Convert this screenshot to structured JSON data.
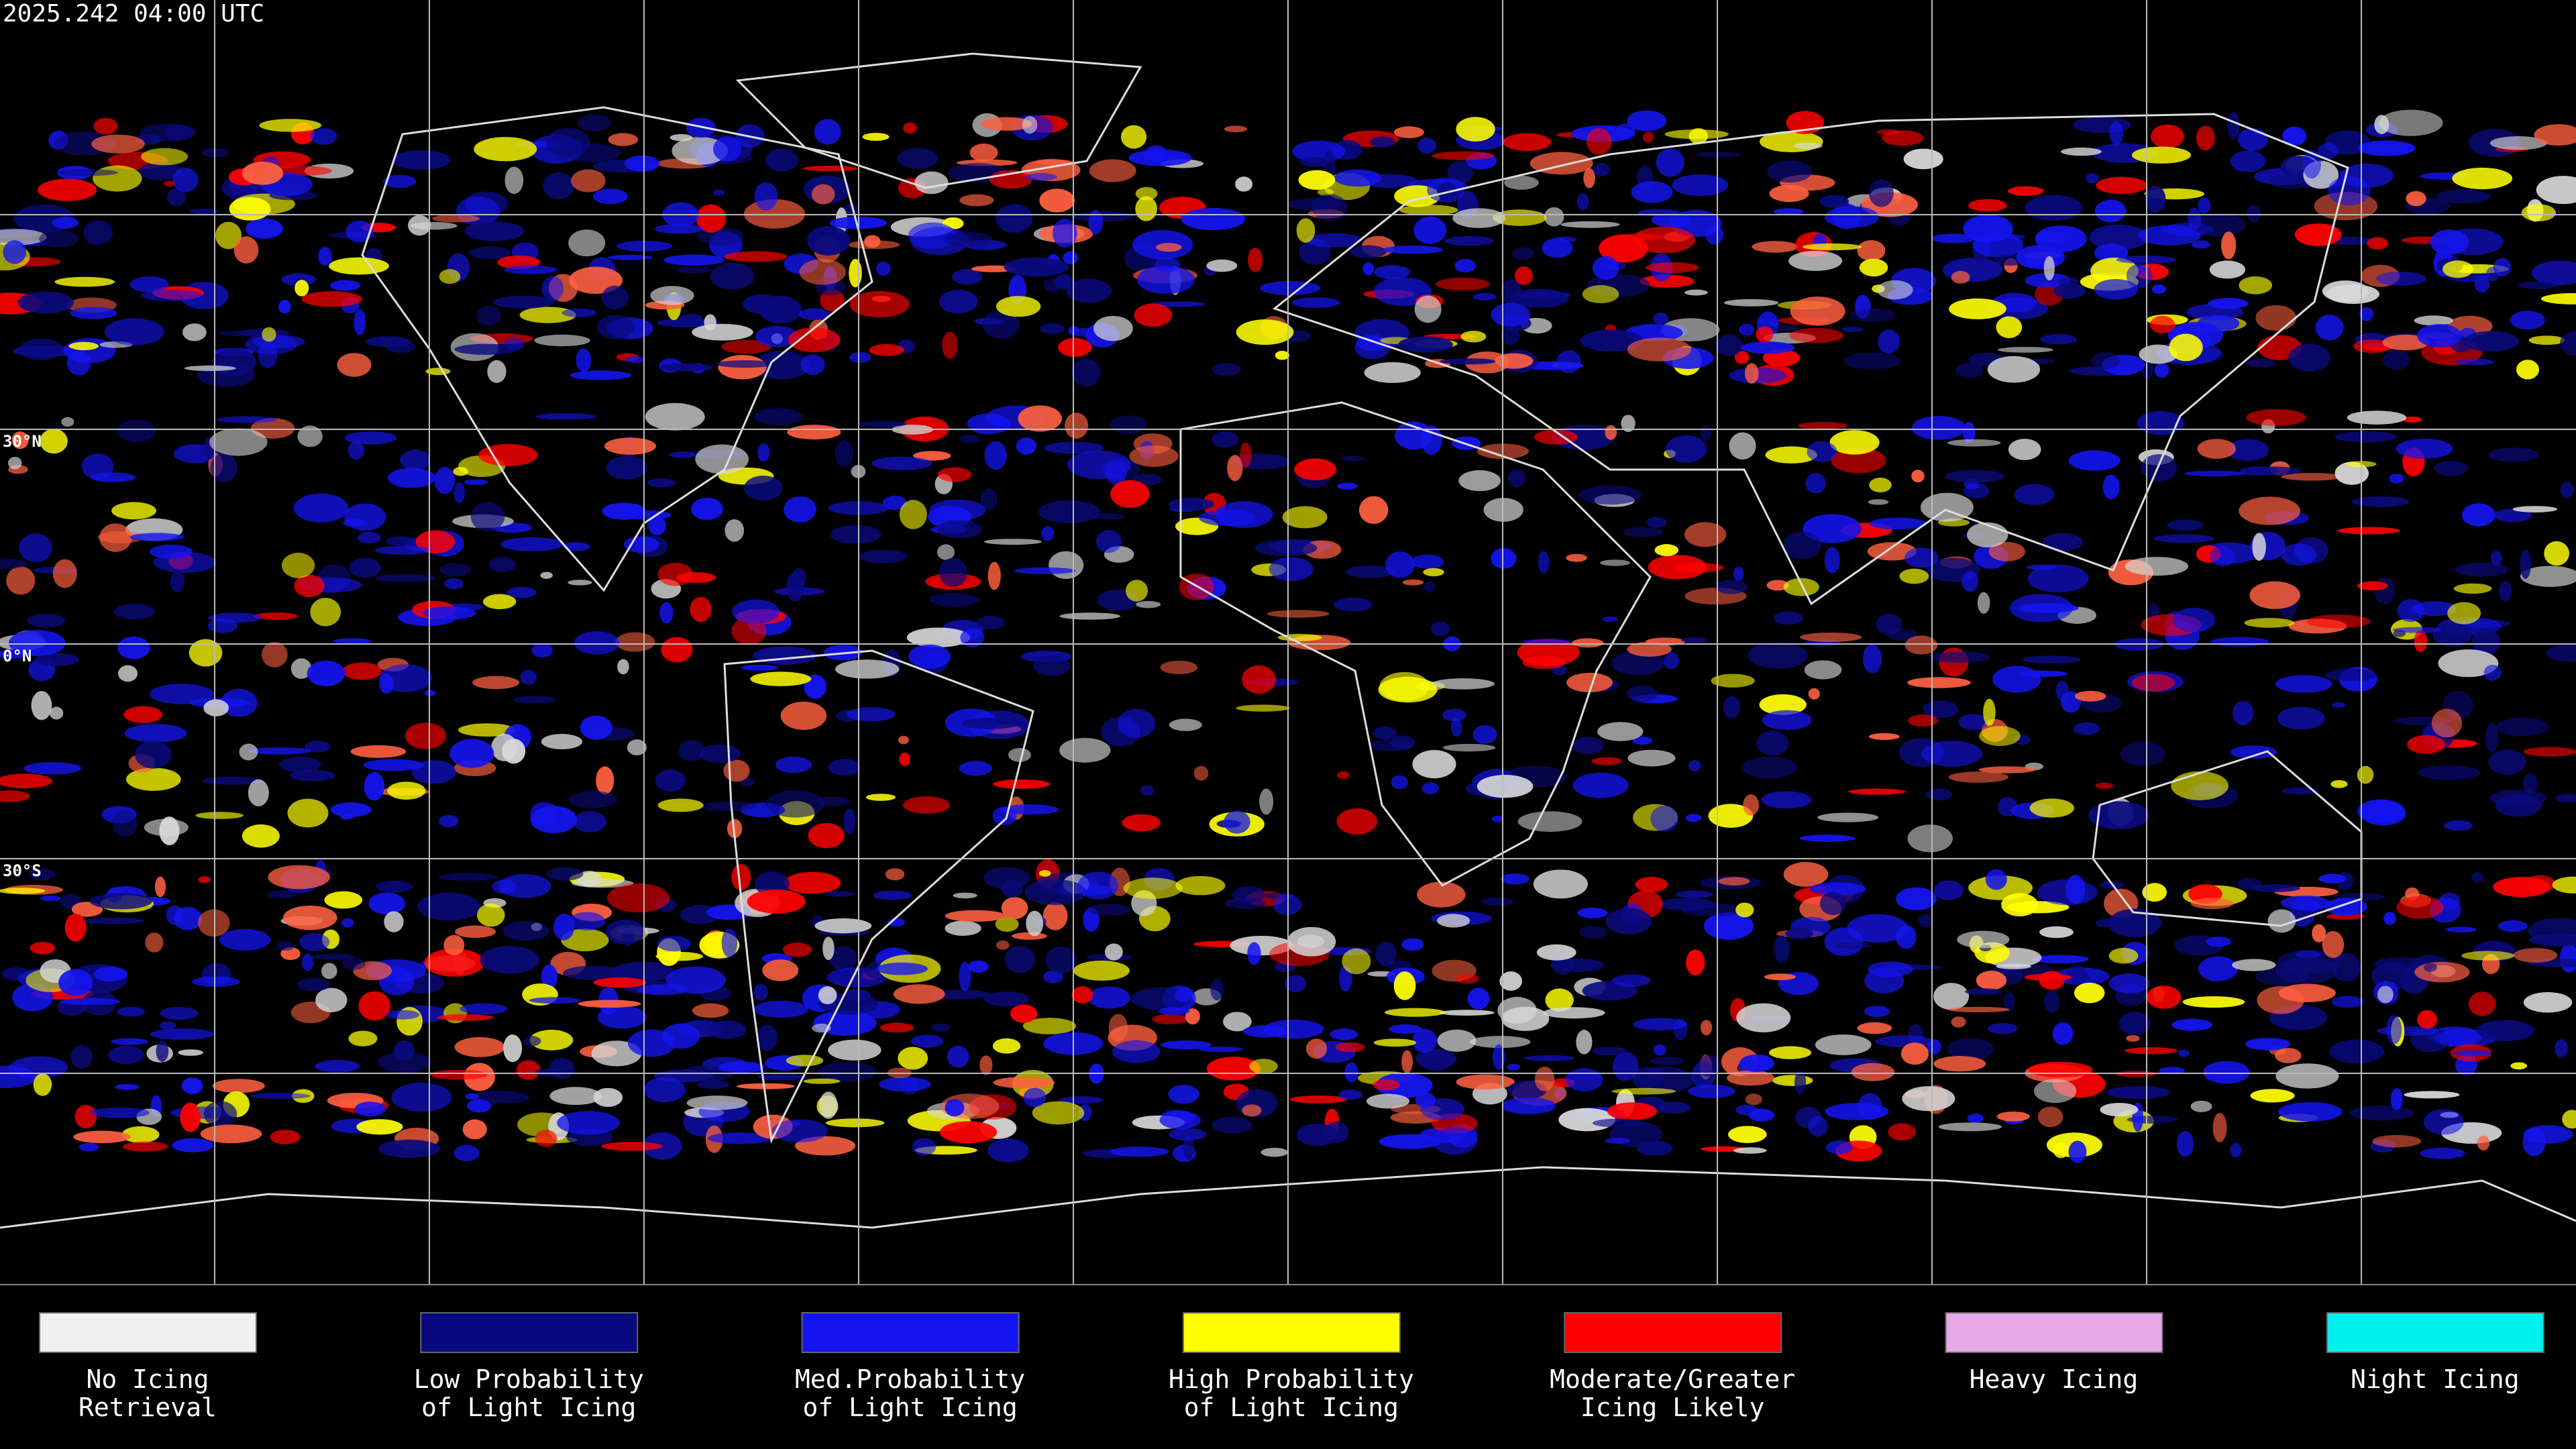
{
  "header": {
    "timestamp": "2025.242 04:00 UTC"
  },
  "map": {
    "latitude_labels": [
      "30°N",
      "0°N",
      "30°S"
    ]
  },
  "legend": {
    "items": [
      {
        "lines": [
          "No Icing",
          "Retrieval"
        ],
        "color": "#f0f0f0"
      },
      {
        "lines": [
          "Low Probability",
          "of Light Icing"
        ],
        "color": "#0a0a80"
      },
      {
        "lines": [
          "Med.Probability",
          "of Light Icing"
        ],
        "color": "#1414f0"
      },
      {
        "lines": [
          "High Probability",
          "of Light Icing"
        ],
        "color": "#ffff00"
      },
      {
        "lines": [
          "Moderate/Greater",
          "Icing Likely"
        ],
        "color": "#ff0000"
      },
      {
        "lines": [
          "Heavy Icing"
        ],
        "color": "#e6a8e6"
      },
      {
        "lines": [
          "Night Icing"
        ],
        "color": "#00f0f0"
      }
    ]
  }
}
